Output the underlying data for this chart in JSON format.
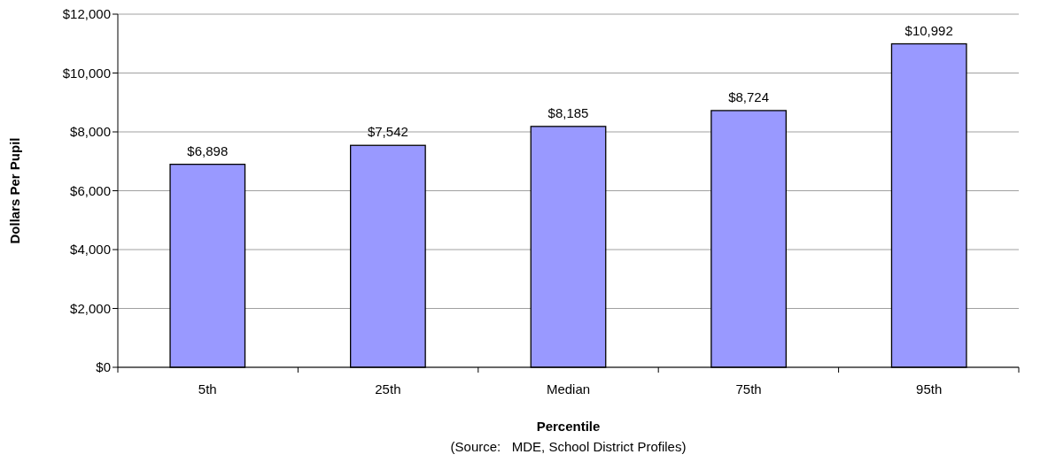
{
  "chart_data": {
    "type": "bar",
    "xlabel": "Percentile",
    "ylabel": "Dollars Per Pupil",
    "annotations": [
      "(Source:   MDE, School District Profiles)"
    ],
    "categories": [
      "5th",
      "25th",
      "Median",
      "75th",
      "95th"
    ],
    "values": [
      6898,
      7542,
      8185,
      8724,
      10992
    ],
    "value_labels": [
      "$6,898",
      "$7,542",
      "$8,185",
      "$8,724",
      "$10,992"
    ],
    "color": "#9999ff",
    "ylim": [
      0,
      12000
    ],
    "yticks": [
      {
        "value": 0,
        "label": "$0"
      },
      {
        "value": 2000,
        "label": "$2,000"
      },
      {
        "value": 4000,
        "label": "$4,000"
      },
      {
        "value": 6000,
        "label": "$6,000"
      },
      {
        "value": 8000,
        "label": "$8,000"
      },
      {
        "value": 10000,
        "label": "$10,000"
      },
      {
        "value": 12000,
        "label": "$12,000"
      }
    ],
    "grid": "y"
  }
}
